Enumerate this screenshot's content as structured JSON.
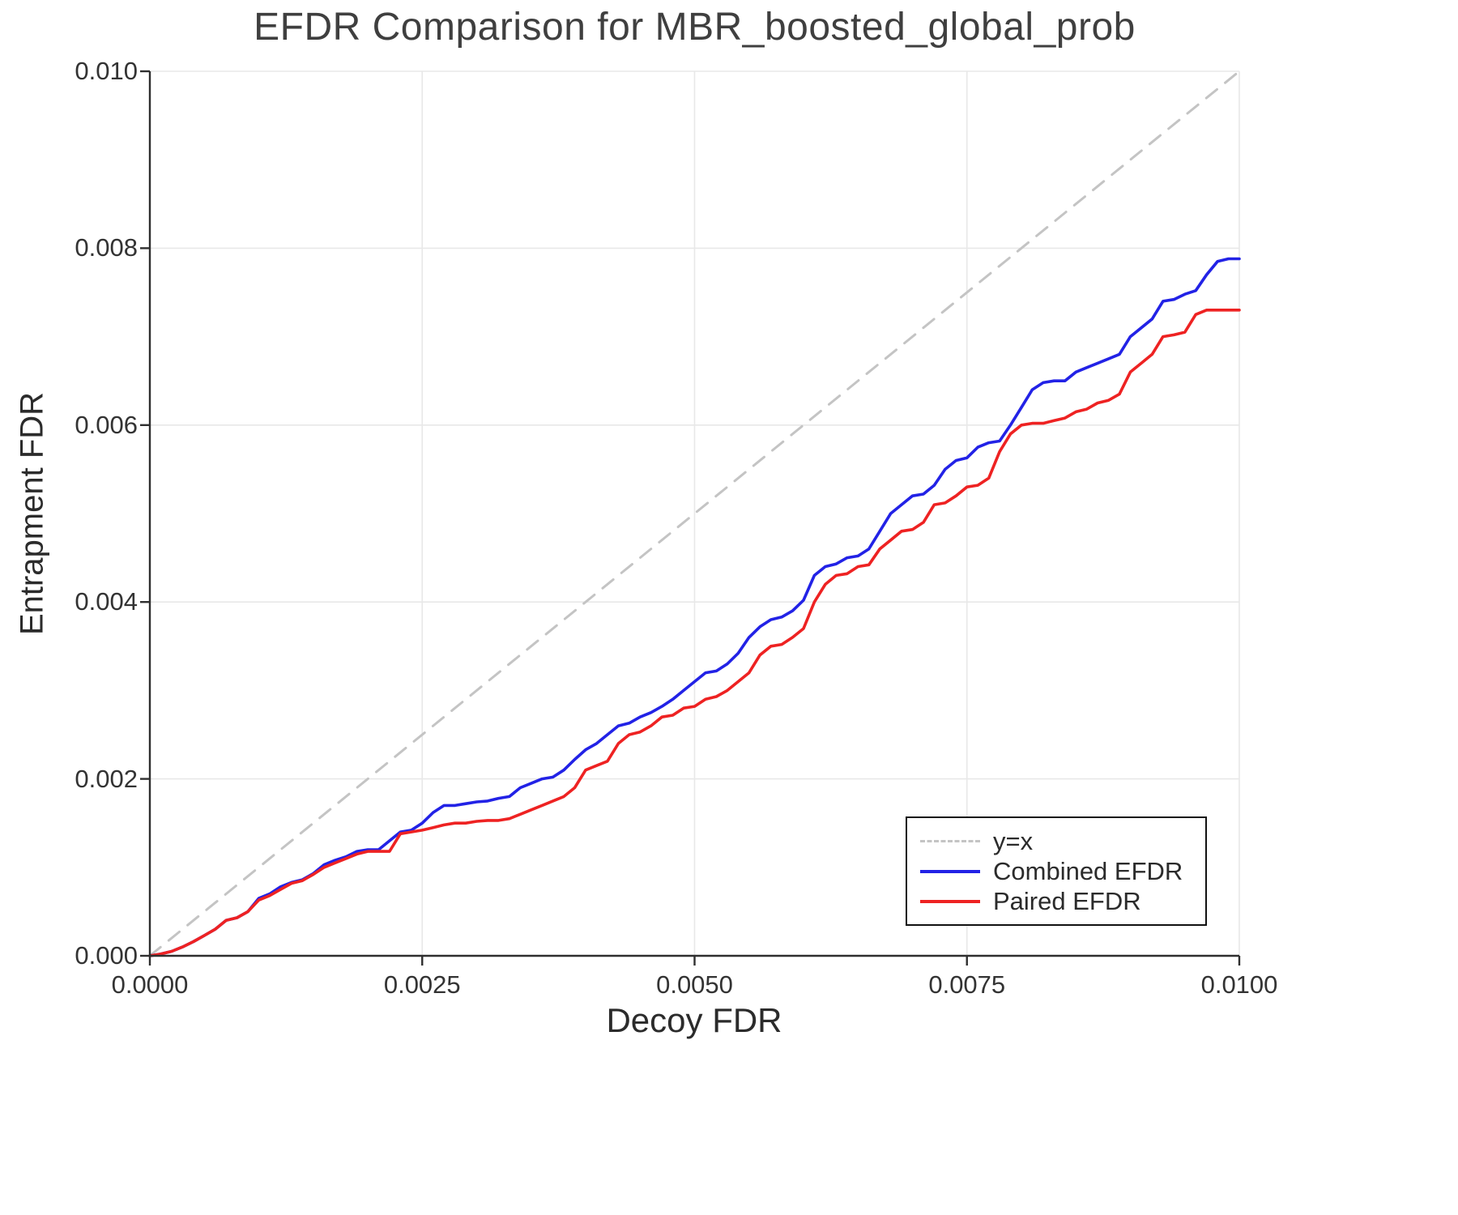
{
  "chart_data": {
    "type": "line",
    "title": "EFDR Comparison for MBR_boosted_global_prob",
    "xlabel": "Decoy FDR",
    "ylabel": "Entrapment FDR",
    "xlim": [
      0.0,
      0.01
    ],
    "ylim": [
      0.0,
      0.01
    ],
    "grid": true,
    "legend_position": "bottom-right",
    "x_ticks": [
      0.0,
      0.0025,
      0.005,
      0.0075,
      0.01
    ],
    "x_tick_labels": [
      "0.0000",
      "0.0025",
      "0.0050",
      "0.0075",
      "0.0100"
    ],
    "y_ticks": [
      0.0,
      0.002,
      0.004,
      0.006,
      0.008,
      0.01
    ],
    "y_tick_labels": [
      "0.000",
      "0.002",
      "0.004",
      "0.006",
      "0.008",
      "0.010"
    ],
    "colors": {
      "identity": "#c4c4c4",
      "combined": "#2222e6",
      "paired": "#ee2222",
      "grid": "#e8e8e8",
      "spine": "#2f2f2f"
    },
    "x_common": [
      0,
      0.0001,
      0.0002,
      0.0003,
      0.0004,
      0.0005,
      0.0006,
      0.0007,
      0.0008,
      0.0009,
      0.001,
      0.0011,
      0.0012,
      0.0013,
      0.0014,
      0.0015,
      0.0016,
      0.0017,
      0.0018,
      0.0019,
      0.002,
      0.0021,
      0.0022,
      0.0023,
      0.0024,
      0.0025,
      0.0026,
      0.0027,
      0.0028,
      0.0029,
      0.003,
      0.0031,
      0.0032,
      0.0033,
      0.0034,
      0.0035,
      0.0036,
      0.0037,
      0.0038,
      0.0039,
      0.004,
      0.0041,
      0.0042,
      0.0043,
      0.0044,
      0.0045,
      0.0046,
      0.0047,
      0.0048,
      0.0049,
      0.005,
      0.0051,
      0.0052,
      0.0053,
      0.0054,
      0.0055,
      0.0056,
      0.0057,
      0.0058,
      0.0059,
      0.006,
      0.0061,
      0.0062,
      0.0063,
      0.0064,
      0.0065,
      0.0066,
      0.0067,
      0.0068,
      0.0069,
      0.007,
      0.0071,
      0.0072,
      0.0073,
      0.0074,
      0.0075,
      0.0076,
      0.0077,
      0.0078,
      0.0079,
      0.008,
      0.0081,
      0.0082,
      0.0083,
      0.0084,
      0.0085,
      0.0086,
      0.0087,
      0.0088,
      0.0089,
      0.009,
      0.0091,
      0.0092,
      0.0093,
      0.0094,
      0.0095,
      0.0096,
      0.0097,
      0.0098,
      0.0099,
      0.01
    ],
    "series": [
      {
        "name": "y=x",
        "style": "dashed",
        "color_key": "identity",
        "x": [
          0,
          0.01
        ],
        "y": [
          0,
          0.01
        ]
      },
      {
        "name": "Combined EFDR",
        "style": "solid",
        "color_key": "combined",
        "y": [
          0,
          2e-05,
          5e-05,
          0.0001,
          0.00016,
          0.00023,
          0.0003,
          0.0004,
          0.00043,
          0.0005,
          0.00065,
          0.0007,
          0.00078,
          0.00083,
          0.00086,
          0.00093,
          0.00103,
          0.00108,
          0.00112,
          0.00118,
          0.0012,
          0.0012,
          0.0013,
          0.0014,
          0.00142,
          0.0015,
          0.00162,
          0.0017,
          0.0017,
          0.00172,
          0.00174,
          0.00175,
          0.00178,
          0.0018,
          0.0019,
          0.00195,
          0.002,
          0.00202,
          0.0021,
          0.00222,
          0.00233,
          0.0024,
          0.0025,
          0.0026,
          0.00263,
          0.0027,
          0.00275,
          0.00282,
          0.0029,
          0.003,
          0.0031,
          0.0032,
          0.00322,
          0.0033,
          0.00342,
          0.0036,
          0.00372,
          0.0038,
          0.00383,
          0.0039,
          0.00402,
          0.0043,
          0.0044,
          0.00443,
          0.0045,
          0.00452,
          0.0046,
          0.0048,
          0.005,
          0.0051,
          0.0052,
          0.00522,
          0.00532,
          0.0055,
          0.0056,
          0.00563,
          0.00575,
          0.0058,
          0.00582,
          0.006,
          0.0062,
          0.0064,
          0.00648,
          0.0065,
          0.0065,
          0.0066,
          0.00665,
          0.0067,
          0.00675,
          0.0068,
          0.007,
          0.0071,
          0.0072,
          0.0074,
          0.00742,
          0.00748,
          0.00752,
          0.0077,
          0.00785,
          0.00788,
          0.00788
        ]
      },
      {
        "name": "Paired EFDR",
        "style": "solid",
        "color_key": "paired",
        "y": [
          0,
          2e-05,
          5e-05,
          0.0001,
          0.00016,
          0.00023,
          0.0003,
          0.0004,
          0.00043,
          0.0005,
          0.00063,
          0.00068,
          0.00075,
          0.00082,
          0.00085,
          0.00092,
          0.001,
          0.00105,
          0.0011,
          0.00115,
          0.00118,
          0.00118,
          0.00118,
          0.00138,
          0.0014,
          0.00142,
          0.00145,
          0.00148,
          0.0015,
          0.0015,
          0.00152,
          0.00153,
          0.00153,
          0.00155,
          0.0016,
          0.00165,
          0.0017,
          0.00175,
          0.0018,
          0.0019,
          0.0021,
          0.00215,
          0.0022,
          0.0024,
          0.0025,
          0.00253,
          0.0026,
          0.0027,
          0.00272,
          0.0028,
          0.00282,
          0.0029,
          0.00293,
          0.003,
          0.0031,
          0.0032,
          0.0034,
          0.0035,
          0.00352,
          0.0036,
          0.0037,
          0.004,
          0.0042,
          0.0043,
          0.00432,
          0.0044,
          0.00442,
          0.0046,
          0.0047,
          0.0048,
          0.00482,
          0.0049,
          0.0051,
          0.00512,
          0.0052,
          0.0053,
          0.00532,
          0.0054,
          0.0057,
          0.0059,
          0.006,
          0.00602,
          0.00602,
          0.00605,
          0.00608,
          0.00615,
          0.00618,
          0.00625,
          0.00628,
          0.00635,
          0.0066,
          0.0067,
          0.0068,
          0.007,
          0.00702,
          0.00705,
          0.00725,
          0.0073,
          0.0073,
          0.0073,
          0.0073
        ]
      }
    ]
  }
}
